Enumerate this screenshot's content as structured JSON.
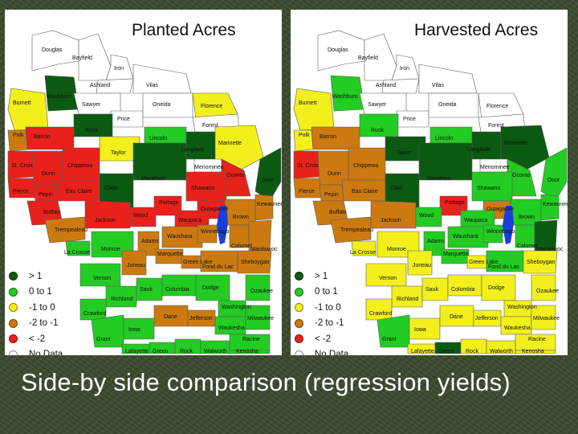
{
  "caption": "Side-by side comparison (regression yields)",
  "colors": {
    "dark_green": "#0b5a12",
    "green": "#22cc22",
    "yellow": "#f2ef1d",
    "orange": "#cc7a10",
    "red": "#e8221b",
    "no_data": "#ffffff"
  },
  "legend": [
    {
      "label": "> 1",
      "class": "dark_green"
    },
    {
      "label": "0 to 1",
      "class": "green"
    },
    {
      "label": "-1 to 0",
      "class": "yellow"
    },
    {
      "label": "-2 to -1",
      "class": "orange"
    },
    {
      "label": "< -2",
      "class": "red"
    },
    {
      "label": "No Data",
      "class": "no_data"
    }
  ],
  "maps": [
    {
      "title": "Planted Acres",
      "counties": [
        {
          "name": "Douglas",
          "class": "no_data"
        },
        {
          "name": "Bayfield",
          "class": "no_data"
        },
        {
          "name": "Iron",
          "class": "no_data"
        },
        {
          "name": "Ashland",
          "class": "no_data"
        },
        {
          "name": "Vilas",
          "class": "no_data"
        },
        {
          "name": "Burnett",
          "class": "yellow"
        },
        {
          "name": "Washburn",
          "class": "dark_green"
        },
        {
          "name": "Sawyer",
          "class": "no_data"
        },
        {
          "name": "Price",
          "class": "no_data"
        },
        {
          "name": "Oneida",
          "class": "no_data"
        },
        {
          "name": "Florence",
          "class": "yellow"
        },
        {
          "name": "Forest",
          "class": "no_data"
        },
        {
          "name": "Polk",
          "class": "orange"
        },
        {
          "name": "Barron",
          "class": "red"
        },
        {
          "name": "Rusk",
          "class": "dark_green"
        },
        {
          "name": "Lincoln",
          "class": "green"
        },
        {
          "name": "Langlade",
          "class": "dark_green"
        },
        {
          "name": "Marinette",
          "class": "yellow"
        },
        {
          "name": "Taylor",
          "class": "yellow"
        },
        {
          "name": "St. Croix",
          "class": "red"
        },
        {
          "name": "Dunn",
          "class": "red"
        },
        {
          "name": "Chippewa",
          "class": "red"
        },
        {
          "name": "Menominee",
          "class": "no_data"
        },
        {
          "name": "Oconto",
          "class": "red"
        },
        {
          "name": "Marathon",
          "class": "dark_green"
        },
        {
          "name": "Pierce",
          "class": "red"
        },
        {
          "name": "Pepin",
          "class": "red"
        },
        {
          "name": "Eau Claire",
          "class": "red"
        },
        {
          "name": "Clark",
          "class": "dark_green"
        },
        {
          "name": "Shawano",
          "class": "red"
        },
        {
          "name": "Door",
          "class": "dark_green"
        },
        {
          "name": "Buffalo",
          "class": "red"
        },
        {
          "name": "Portage",
          "class": "red"
        },
        {
          "name": "Outagamie",
          "class": "red"
        },
        {
          "name": "Kewaunee",
          "class": "orange"
        },
        {
          "name": "Trempealeau",
          "class": "orange"
        },
        {
          "name": "Jackson",
          "class": "red"
        },
        {
          "name": "Wood",
          "class": "red"
        },
        {
          "name": "Waupaca",
          "class": "red"
        },
        {
          "name": "Brown",
          "class": "orange"
        },
        {
          "name": "Adams",
          "class": "orange"
        },
        {
          "name": "Waushara",
          "class": "orange"
        },
        {
          "name": "Winnebago",
          "class": "orange"
        },
        {
          "name": "Calumet",
          "class": "orange"
        },
        {
          "name": "Manitowoc",
          "class": "orange"
        },
        {
          "name": "La Crosse",
          "class": "green"
        },
        {
          "name": "Monroe",
          "class": "green"
        },
        {
          "name": "Juneau",
          "class": "orange"
        },
        {
          "name": "Marquette",
          "class": "orange"
        },
        {
          "name": "Green Lake",
          "class": "orange"
        },
        {
          "name": "Fond du Lac",
          "class": "orange"
        },
        {
          "name": "Sheboygan",
          "class": "orange"
        },
        {
          "name": "Vernon",
          "class": "green"
        },
        {
          "name": "Richland",
          "class": "green"
        },
        {
          "name": "Sauk",
          "class": "green"
        },
        {
          "name": "Columbia",
          "class": "green"
        },
        {
          "name": "Dodge",
          "class": "green"
        },
        {
          "name": "Washington",
          "class": "green"
        },
        {
          "name": "Ozaukee",
          "class": "green"
        },
        {
          "name": "Crawford",
          "class": "green"
        },
        {
          "name": "Grant",
          "class": "green"
        },
        {
          "name": "Iowa",
          "class": "green"
        },
        {
          "name": "Dane",
          "class": "orange"
        },
        {
          "name": "Jefferson",
          "class": "orange"
        },
        {
          "name": "Waukesha",
          "class": "green"
        },
        {
          "name": "Milwaukee",
          "class": "green"
        },
        {
          "name": "Lafayette",
          "class": "green"
        },
        {
          "name": "Green",
          "class": "green"
        },
        {
          "name": "Rock",
          "class": "green"
        },
        {
          "name": "Walworth",
          "class": "green"
        },
        {
          "name": "Racine",
          "class": "green"
        },
        {
          "name": "Kenosha",
          "class": "green"
        }
      ]
    },
    {
      "title": "Harvested Acres",
      "counties": [
        {
          "name": "Douglas",
          "class": "no_data"
        },
        {
          "name": "Bayfield",
          "class": "no_data"
        },
        {
          "name": "Iron",
          "class": "no_data"
        },
        {
          "name": "Ashland",
          "class": "no_data"
        },
        {
          "name": "Vilas",
          "class": "no_data"
        },
        {
          "name": "Burnett",
          "class": "yellow"
        },
        {
          "name": "Washburn",
          "class": "green"
        },
        {
          "name": "Sawyer",
          "class": "no_data"
        },
        {
          "name": "Price",
          "class": "no_data"
        },
        {
          "name": "Oneida",
          "class": "no_data"
        },
        {
          "name": "Florence",
          "class": "no_data"
        },
        {
          "name": "Forest",
          "class": "no_data"
        },
        {
          "name": "Polk",
          "class": "yellow"
        },
        {
          "name": "Barron",
          "class": "orange"
        },
        {
          "name": "Rusk",
          "class": "green"
        },
        {
          "name": "Lincoln",
          "class": "green"
        },
        {
          "name": "Langlade",
          "class": "dark_green"
        },
        {
          "name": "Marinette",
          "class": "dark_green"
        },
        {
          "name": "Taylor",
          "class": "dark_green"
        },
        {
          "name": "St. Croix",
          "class": "red"
        },
        {
          "name": "Dunn",
          "class": "orange"
        },
        {
          "name": "Chippewa",
          "class": "orange"
        },
        {
          "name": "Menominee",
          "class": "no_data"
        },
        {
          "name": "Oconto",
          "class": "green"
        },
        {
          "name": "Marathon",
          "class": "dark_green"
        },
        {
          "name": "Pierce",
          "class": "orange"
        },
        {
          "name": "Pepin",
          "class": "orange"
        },
        {
          "name": "Eau Claire",
          "class": "orange"
        },
        {
          "name": "Clark",
          "class": "dark_green"
        },
        {
          "name": "Shawano",
          "class": "green"
        },
        {
          "name": "Door",
          "class": "green"
        },
        {
          "name": "Buffalo",
          "class": "orange"
        },
        {
          "name": "Portage",
          "class": "red"
        },
        {
          "name": "Outagamie",
          "class": "orange"
        },
        {
          "name": "Kewaunee",
          "class": "green"
        },
        {
          "name": "Trempealeau",
          "class": "orange"
        },
        {
          "name": "Jackson",
          "class": "orange"
        },
        {
          "name": "Wood",
          "class": "green"
        },
        {
          "name": "Waupaca",
          "class": "green"
        },
        {
          "name": "Brown",
          "class": "green"
        },
        {
          "name": "Adams",
          "class": "green"
        },
        {
          "name": "Waushara",
          "class": "green"
        },
        {
          "name": "Winnebago",
          "class": "green"
        },
        {
          "name": "Calumet",
          "class": "green"
        },
        {
          "name": "Manitowoc",
          "class": "dark_green"
        },
        {
          "name": "La Crosse",
          "class": "yellow"
        },
        {
          "name": "Monroe",
          "class": "yellow"
        },
        {
          "name": "Juneau",
          "class": "yellow"
        },
        {
          "name": "Marquette",
          "class": "green"
        },
        {
          "name": "Green Lake",
          "class": "yellow"
        },
        {
          "name": "Fond du Lac",
          "class": "green"
        },
        {
          "name": "Sheboygan",
          "class": "yellow"
        },
        {
          "name": "Vernon",
          "class": "yellow"
        },
        {
          "name": "Richland",
          "class": "yellow"
        },
        {
          "name": "Sauk",
          "class": "yellow"
        },
        {
          "name": "Columbia",
          "class": "yellow"
        },
        {
          "name": "Dodge",
          "class": "yellow"
        },
        {
          "name": "Washington",
          "class": "yellow"
        },
        {
          "name": "Ozaukee",
          "class": "yellow"
        },
        {
          "name": "Crawford",
          "class": "yellow"
        },
        {
          "name": "Grant",
          "class": "green"
        },
        {
          "name": "Iowa",
          "class": "yellow"
        },
        {
          "name": "Dane",
          "class": "yellow"
        },
        {
          "name": "Jefferson",
          "class": "yellow"
        },
        {
          "name": "Waukesha",
          "class": "yellow"
        },
        {
          "name": "Milwaukee",
          "class": "yellow"
        },
        {
          "name": "Lafayette",
          "class": "yellow"
        },
        {
          "name": "Green",
          "class": "dark_green"
        },
        {
          "name": "Rock",
          "class": "yellow"
        },
        {
          "name": "Walworth",
          "class": "yellow"
        },
        {
          "name": "Racine",
          "class": "yellow"
        },
        {
          "name": "Kenosha",
          "class": "yellow"
        }
      ]
    }
  ]
}
